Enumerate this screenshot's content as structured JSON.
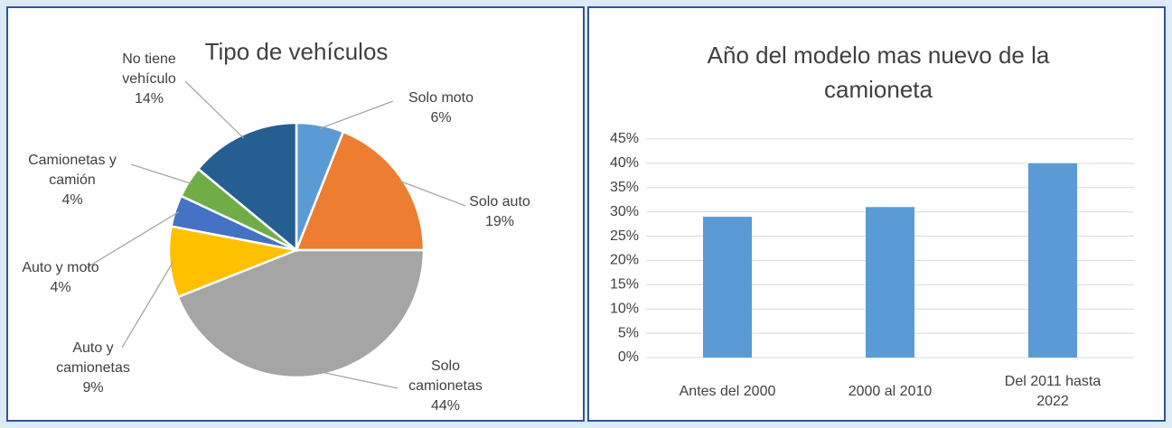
{
  "chart_data": [
    {
      "type": "pie",
      "title": "Tipo de vehículos",
      "categories": [
        "Solo moto",
        "Solo auto",
        "Solo camionetas",
        "Auto y camionetas",
        "Auto y moto",
        "Camionetas y camión",
        "No tiene vehículo"
      ],
      "values": [
        6,
        19,
        44,
        9,
        4,
        4,
        14
      ],
      "value_labels": [
        "6%",
        "19%",
        "44%",
        "9%",
        "4%",
        "4%",
        "14%"
      ],
      "colors": [
        "#5b9bd5",
        "#ed7d31",
        "#a5a5a5",
        "#ffc000",
        "#4472c4",
        "#70ad47",
        "#255e91"
      ]
    },
    {
      "type": "bar",
      "title": "Año del modelo mas nuevo de la camioneta",
      "categories": [
        "Antes del 2000",
        "2000 al 2010",
        "Del 2011 hasta 2022"
      ],
      "values": [
        29,
        31,
        40
      ],
      "color": "#5b9bd5",
      "ylim": [
        0,
        45
      ],
      "yticks": [
        {
          "value": 0,
          "label": "0%"
        },
        {
          "value": 5,
          "label": "5%"
        },
        {
          "value": 10,
          "label": "10%"
        },
        {
          "value": 15,
          "label": "15%"
        },
        {
          "value": 20,
          "label": "20%"
        },
        {
          "value": 25,
          "label": "25%"
        },
        {
          "value": 30,
          "label": "30%"
        },
        {
          "value": 35,
          "label": "35%"
        },
        {
          "value": 40,
          "label": "40%"
        },
        {
          "value": 45,
          "label": "45%"
        }
      ],
      "grid": true
    }
  ]
}
